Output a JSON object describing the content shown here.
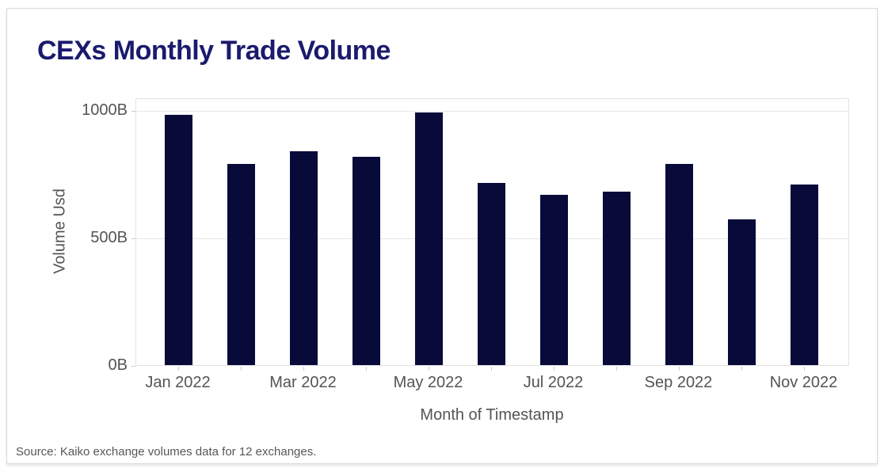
{
  "page": {
    "title": "CEXs Monthly Trade Volume",
    "source_note": "Source: Kaiko exchange volumes data for 12 exchanges."
  },
  "chart_data": {
    "type": "bar",
    "title": "CEXs Monthly Trade Volume",
    "xlabel": "Month of Timestamp",
    "ylabel": "Volume Usd",
    "categories": [
      "Jan 2022",
      "Feb 2022",
      "Mar 2022",
      "Apr 2022",
      "May 2022",
      "Jun 2022",
      "Jul 2022",
      "Aug 2022",
      "Sep 2022",
      "Oct 2022",
      "Nov 2022"
    ],
    "values": [
      980,
      790,
      840,
      817,
      992,
      715,
      667,
      679,
      790,
      571,
      707
    ],
    "unit": "B",
    "y_ticks": [
      {
        "label": "0B",
        "value": 0
      },
      {
        "label": "500B",
        "value": 500
      },
      {
        "label": "1000B",
        "value": 1000
      }
    ],
    "x_tick_labels": [
      "Jan 2022",
      "Mar 2022",
      "May 2022",
      "Jul 2022",
      "Sep 2022",
      "Nov 2022"
    ],
    "x_label_every": 2,
    "ylim": [
      0,
      1048
    ],
    "grid": true,
    "legend": "none",
    "bar_color": "#080b3a",
    "title_color": "#1a1a6e",
    "axis_text_color": "#545454"
  }
}
